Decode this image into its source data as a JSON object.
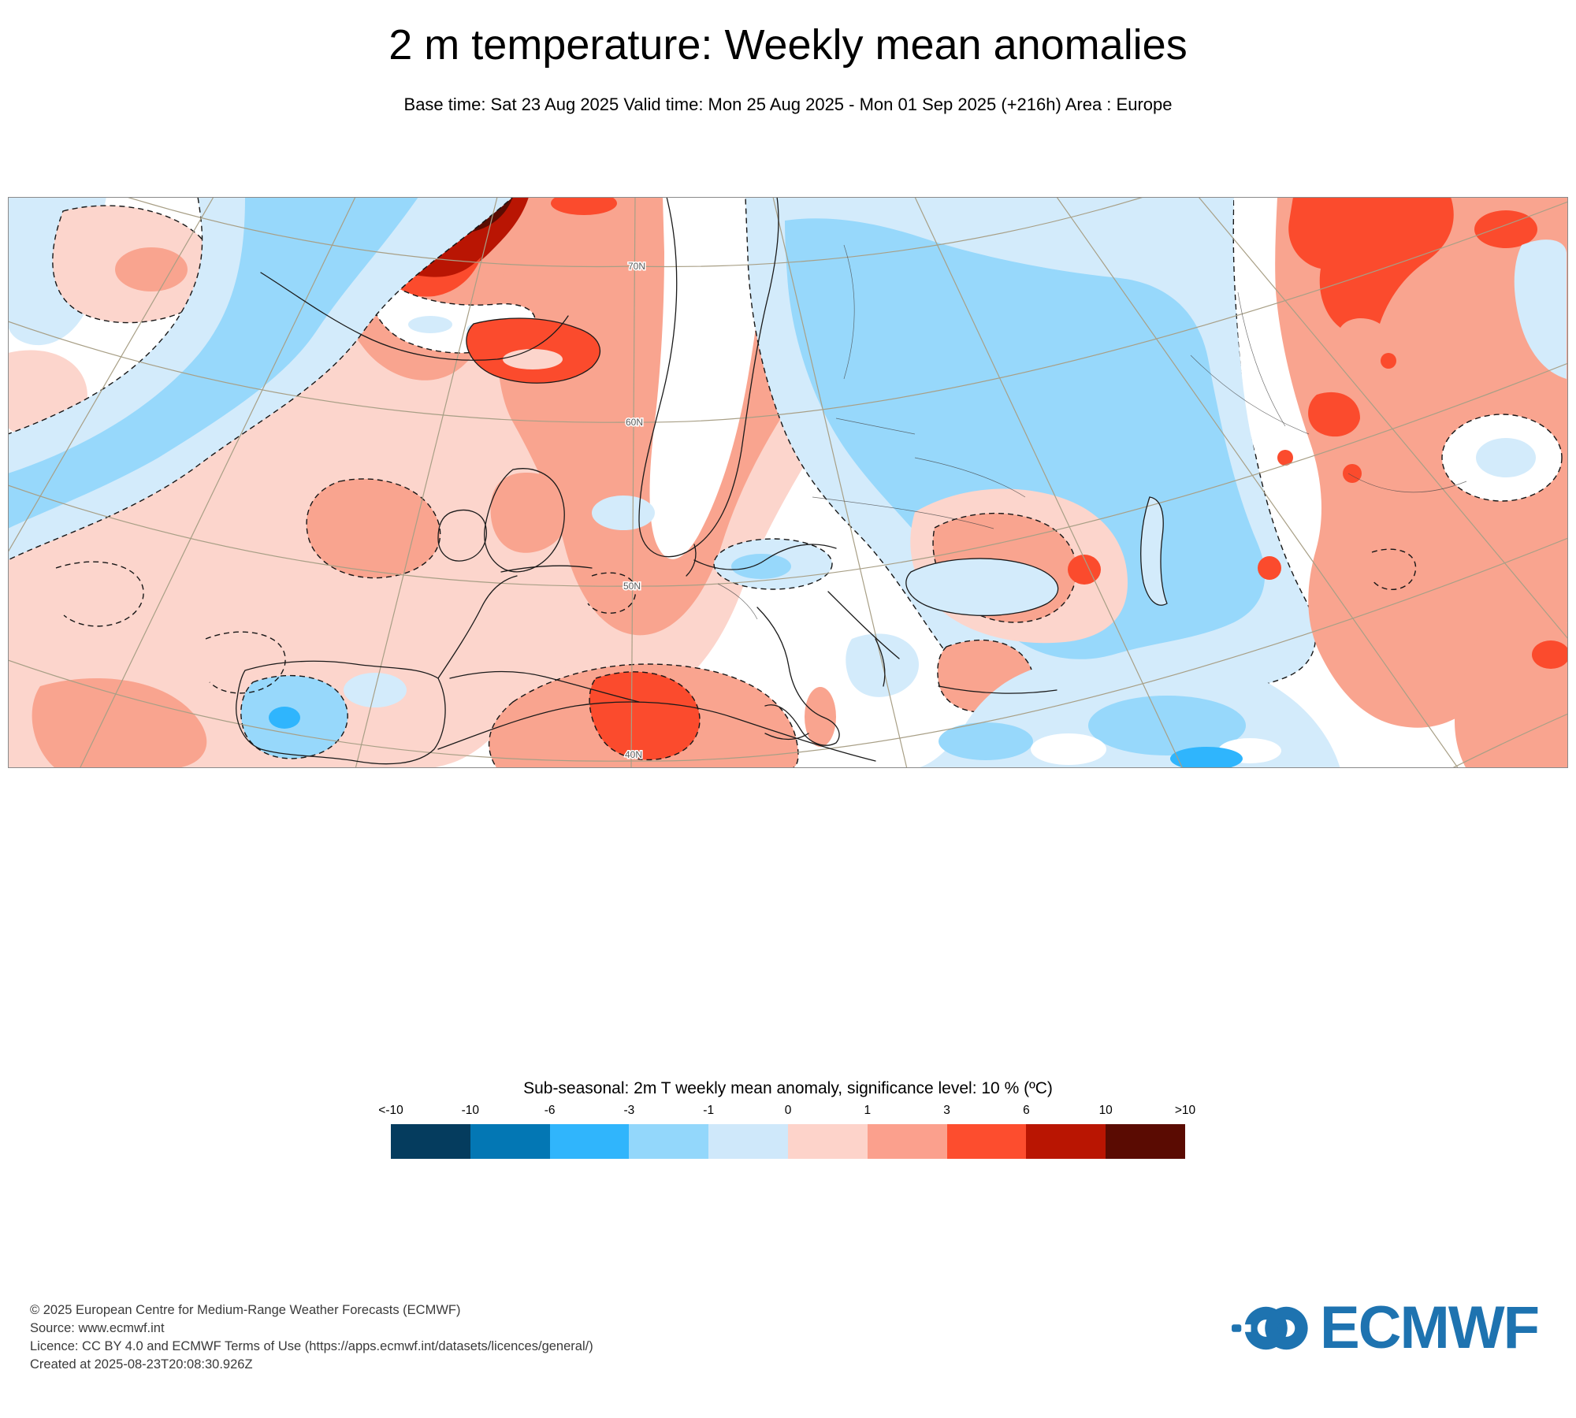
{
  "header": {
    "title": "2 m temperature: Weekly mean anomalies",
    "subtitle": "Base time: Sat 23 Aug 2025 Valid time: Mon 25 Aug 2025 - Mon 01 Sep 2025 (+216h) Area : Europe"
  },
  "map": {
    "graticule_labels": [
      "70N",
      "60N",
      "50N",
      "40N"
    ]
  },
  "legend": {
    "title": "Sub-seasonal: 2m T weekly mean anomaly, significance level: 10 % (ºC)",
    "tick_labels": [
      "<-10",
      "-10",
      "-6",
      "-3",
      "-1",
      "0",
      "1",
      "3",
      "6",
      "10",
      ">10"
    ],
    "colors": [
      "#053C5E",
      "#0377B4",
      "#30B5FC",
      "#93D7FB",
      "#CFE8FA",
      "#FDD3CA",
      "#FBA08D",
      "#FD4D2E",
      "#B91502",
      "#5A0B02"
    ]
  },
  "footer": {
    "lines": [
      "© 2025 European Centre for Medium-Range Weather Forecasts (ECMWF)",
      "Source: www.ecmwf.int",
      "Licence: CC BY 4.0 and ECMWF Terms of Use (https://apps.ecmwf.int/datasets/licences/general/)",
      "Created at 2025-08-23T20:08:30.926Z"
    ]
  },
  "logo": {
    "text": "ECMWF",
    "color": "#1E73B0"
  },
  "palette": {
    "white": "#FFFFFF",
    "pale_pink": "#FCD5CC",
    "salmon": "#F9A48F",
    "orange_red": "#FB4B2D",
    "dark_red": "#B91503",
    "maroon": "#5A0C02",
    "pale_blue": "#D3EBFB",
    "light_blue": "#97D8FB",
    "bright_blue": "#2FB5FD",
    "graticule": "#A89F86",
    "coast": "#1A1A1A",
    "frame": "#8A8A8A",
    "label": "#5A5A5A"
  }
}
